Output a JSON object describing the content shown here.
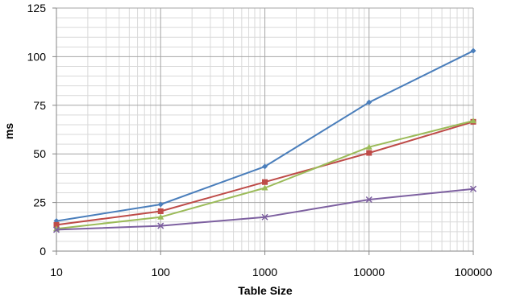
{
  "chart_data": {
    "type": "line",
    "title": "",
    "xlabel": "Table Size",
    "ylabel": "ms",
    "x_scale": "log",
    "x": [
      10,
      100,
      1000,
      10000,
      100000
    ],
    "x_tick_labels": [
      "10",
      "100",
      "1000",
      "10000",
      "100000"
    ],
    "xlim": [
      10,
      100000
    ],
    "ylim": [
      0,
      125
    ],
    "y_ticks": [
      0,
      25,
      50,
      75,
      100,
      125
    ],
    "grid": true,
    "legend": "none",
    "series": [
      {
        "color": "#4A7EBB",
        "marker": "diamond",
        "values": [
          15.5,
          24,
          43.5,
          76.5,
          103
        ]
      },
      {
        "color": "#BE4B48",
        "marker": "square",
        "values": [
          13.5,
          20.5,
          35.5,
          50.5,
          66.5
        ]
      },
      {
        "color": "#9BBB59",
        "marker": "triangle",
        "values": [
          11.5,
          17.5,
          32.5,
          53.5,
          67
        ]
      },
      {
        "color": "#7D60A0",
        "marker": "x",
        "values": [
          11,
          13,
          17.5,
          26.5,
          32
        ]
      }
    ]
  }
}
